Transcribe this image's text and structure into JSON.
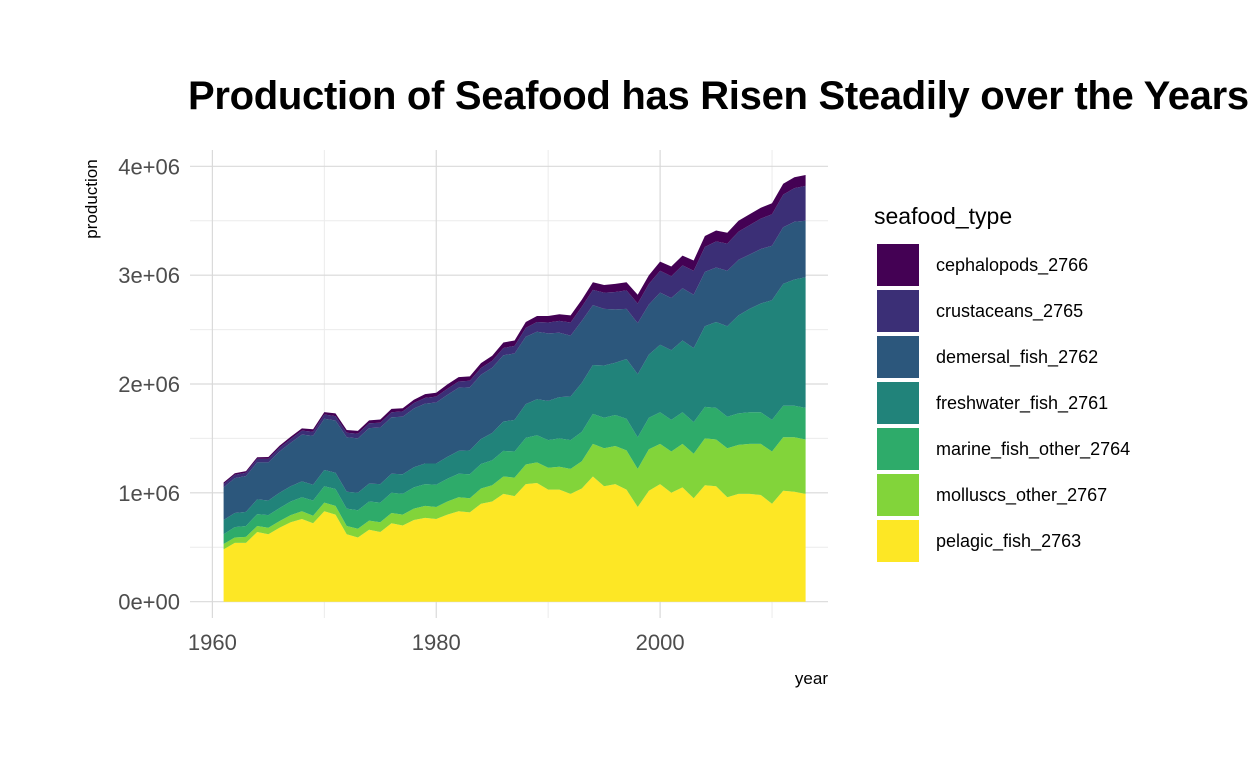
{
  "title": "Production of Seafood has Risen Steadily over the Years",
  "legend": {
    "title": "seafood_type",
    "items": [
      {
        "label": "cephalopods_2766",
        "color": "#440154"
      },
      {
        "label": "crustaceans_2765",
        "color": "#3b2f76"
      },
      {
        "label": "demersal_fish_2762",
        "color": "#2c577c"
      },
      {
        "label": "freshwater_fish_2761",
        "color": "#21837a"
      },
      {
        "label": "marine_fish_other_2764",
        "color": "#2eab6a"
      },
      {
        "label": "molluscs_other_2767",
        "color": "#82d43a"
      },
      {
        "label": "pelagic_fish_2763",
        "color": "#fde725"
      }
    ]
  },
  "chart_data": {
    "type": "area",
    "stacked": true,
    "title": "Production of Seafood has Risen Steadily over the Years",
    "xlabel": "year",
    "ylabel": "production",
    "xlim": [
      1958,
      2015
    ],
    "ylim": [
      -150000,
      4150000
    ],
    "x_ticks": [
      1960,
      1980,
      2000
    ],
    "x_tick_labels": [
      "1960",
      "1980",
      "2000"
    ],
    "y_ticks": [
      0,
      1000000,
      2000000,
      3000000,
      4000000
    ],
    "y_tick_labels": [
      "0e+00",
      "1e+06",
      "2e+06",
      "3e+06",
      "4e+06"
    ],
    "grid": true,
    "legend_position": "right",
    "x": [
      1961,
      1962,
      1963,
      1964,
      1965,
      1966,
      1967,
      1968,
      1969,
      1970,
      1971,
      1972,
      1973,
      1974,
      1975,
      1976,
      1977,
      1978,
      1979,
      1980,
      1981,
      1982,
      1983,
      1984,
      1985,
      1986,
      1987,
      1988,
      1989,
      1990,
      1991,
      1992,
      1993,
      1994,
      1995,
      1996,
      1997,
      1998,
      1999,
      2000,
      2001,
      2002,
      2003,
      2004,
      2005,
      2006,
      2007,
      2008,
      2009,
      2010,
      2011,
      2012,
      2013
    ],
    "series": [
      {
        "name": "pelagic_fish_2763",
        "color": "#fde725",
        "values": [
          480000,
          540000,
          540000,
          640000,
          620000,
          680000,
          730000,
          760000,
          720000,
          830000,
          800000,
          620000,
          590000,
          660000,
          640000,
          720000,
          700000,
          750000,
          770000,
          760000,
          800000,
          830000,
          820000,
          900000,
          920000,
          990000,
          970000,
          1080000,
          1090000,
          1030000,
          1030000,
          990000,
          1040000,
          1150000,
          1060000,
          1080000,
          1030000,
          870000,
          1020000,
          1080000,
          1000000,
          1050000,
          950000,
          1070000,
          1060000,
          960000,
          990000,
          990000,
          980000,
          900000,
          1020000,
          1010000,
          990000
        ]
      },
      {
        "name": "molluscs_other_2767",
        "color": "#82d43a",
        "values": [
          50000,
          50000,
          55000,
          55000,
          60000,
          60000,
          65000,
          70000,
          70000,
          80000,
          80000,
          75000,
          80000,
          85000,
          90000,
          95000,
          100000,
          105000,
          110000,
          110000,
          120000,
          130000,
          130000,
          140000,
          150000,
          160000,
          170000,
          180000,
          190000,
          200000,
          210000,
          230000,
          250000,
          300000,
          350000,
          350000,
          360000,
          350000,
          380000,
          370000,
          380000,
          400000,
          410000,
          430000,
          430000,
          450000,
          450000,
          460000,
          470000,
          480000,
          490000,
          500000,
          500000
        ]
      },
      {
        "name": "marine_fish_other_2764",
        "color": "#2eab6a",
        "values": [
          90000,
          95000,
          100000,
          110000,
          115000,
          120000,
          125000,
          130000,
          140000,
          150000,
          155000,
          160000,
          170000,
          175000,
          180000,
          185000,
          190000,
          195000,
          200000,
          205000,
          210000,
          215000,
          220000,
          225000,
          230000,
          235000,
          240000,
          245000,
          250000,
          255000,
          260000,
          265000,
          270000,
          275000,
          280000,
          285000,
          290000,
          290000,
          290000,
          290000,
          290000,
          290000,
          290000,
          290000,
          290000,
          290000,
          290000,
          290000,
          290000,
          290000,
          290000,
          290000,
          290000
        ]
      },
      {
        "name": "freshwater_fish_2761",
        "color": "#21837a",
        "values": [
          130000,
          130000,
          130000,
          135000,
          135000,
          140000,
          140000,
          145000,
          145000,
          150000,
          150000,
          155000,
          160000,
          165000,
          170000,
          175000,
          180000,
          185000,
          190000,
          195000,
          200000,
          210000,
          220000,
          230000,
          250000,
          270000,
          290000,
          310000,
          330000,
          360000,
          380000,
          400000,
          450000,
          450000,
          480000,
          480000,
          550000,
          580000,
          580000,
          620000,
          640000,
          660000,
          680000,
          740000,
          790000,
          830000,
          900000,
          950000,
          1000000,
          1100000,
          1120000,
          1160000,
          1200000
        ]
      },
      {
        "name": "demersal_fish_2762",
        "color": "#2c577c",
        "values": [
          300000,
          320000,
          330000,
          340000,
          350000,
          380000,
          400000,
          430000,
          450000,
          470000,
          480000,
          500000,
          500000,
          510000,
          520000,
          520000,
          530000,
          540000,
          550000,
          560000,
          570000,
          580000,
          580000,
          590000,
          600000,
          610000,
          610000,
          620000,
          620000,
          620000,
          590000,
          560000,
          570000,
          550000,
          520000,
          490000,
          460000,
          470000,
          460000,
          480000,
          480000,
          480000,
          490000,
          500000,
          500000,
          510000,
          510000,
          500000,
          500000,
          500000,
          520000,
          530000,
          520000
        ]
      },
      {
        "name": "crustaceans_2765",
        "color": "#3b2f76",
        "values": [
          30000,
          30000,
          30000,
          32000,
          32000,
          35000,
          35000,
          37000,
          37000,
          40000,
          40000,
          42000,
          42000,
          44000,
          44000,
          46000,
          48000,
          50000,
          52000,
          54000,
          56000,
          58000,
          60000,
          62000,
          64000,
          66000,
          70000,
          80000,
          90000,
          100000,
          110000,
          120000,
          130000,
          140000,
          150000,
          160000,
          170000,
          180000,
          190000,
          200000,
          200000,
          210000,
          220000,
          230000,
          240000,
          250000,
          260000,
          270000,
          280000,
          290000,
          300000,
          310000,
          320000
        ]
      },
      {
        "name": "cephalopods_2766",
        "color": "#440154",
        "values": [
          15000,
          15000,
          15000,
          15000,
          17000,
          17000,
          20000,
          20000,
          22000,
          22000,
          25000,
          25000,
          27000,
          27000,
          30000,
          30000,
          30000,
          30000,
          35000,
          35000,
          40000,
          40000,
          40000,
          45000,
          45000,
          50000,
          50000,
          55000,
          55000,
          60000,
          60000,
          65000,
          65000,
          70000,
          70000,
          75000,
          75000,
          80000,
          80000,
          85000,
          90000,
          90000,
          95000,
          100000,
          100000,
          100000,
          100000,
          100000,
          100000,
          100000,
          100000,
          100000,
          100000
        ]
      }
    ]
  }
}
